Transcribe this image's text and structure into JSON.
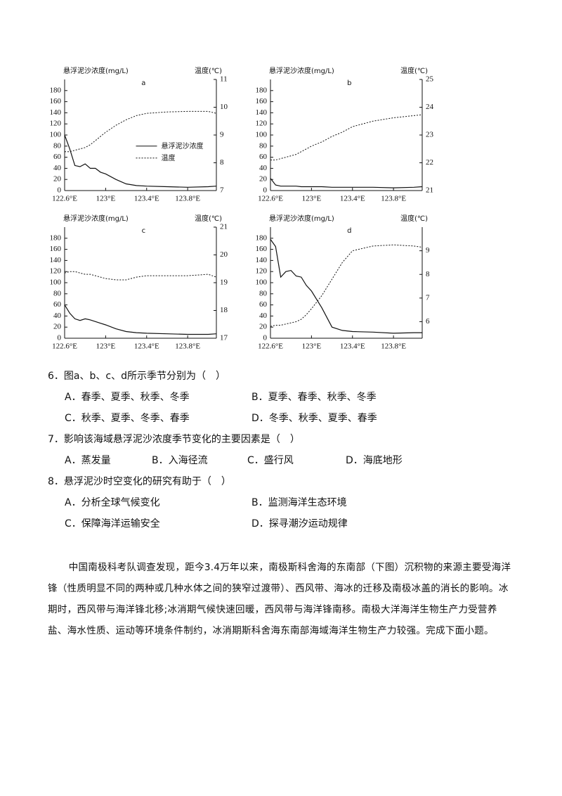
{
  "chart_data": [
    {
      "type": "line",
      "title": "a",
      "y_label": "悬浮泥沙浓度(mg/L)",
      "y2_label": "温度(℃)",
      "x": [
        122.6,
        122.65,
        122.7,
        122.75,
        122.8,
        122.85,
        122.9,
        122.95,
        123.0,
        123.1,
        123.2,
        123.3,
        123.4,
        123.6,
        123.8,
        124.0,
        124.08
      ],
      "xlim": [
        122.6,
        124.08
      ],
      "xticks": [
        {
          "value": 122.6,
          "label": "122.6°E"
        },
        {
          "value": 123.0,
          "label": "123°E"
        },
        {
          "value": 123.4,
          "label": "123.4°E"
        },
        {
          "value": 123.8,
          "label": "123.8°E"
        }
      ],
      "ylim": [
        0,
        200
      ],
      "yticks": [
        0,
        20,
        40,
        60,
        80,
        100,
        120,
        140,
        160,
        180
      ],
      "y2lim": [
        7,
        11
      ],
      "y2ticks": [
        7,
        8,
        9,
        10,
        11
      ],
      "legend": "center",
      "series": [
        {
          "name": "悬浮泥沙浓度",
          "color": "#111111",
          "style": "solid",
          "values": [
            100,
            75,
            45,
            43,
            48,
            40,
            40,
            33,
            30,
            20,
            12,
            9,
            8,
            7,
            6,
            7,
            8
          ]
        },
        {
          "name": "温度",
          "color": "#111111",
          "style": "dashed",
          "axis": "y2",
          "values": [
            8.4,
            8.4,
            8.45,
            8.5,
            8.55,
            8.65,
            8.8,
            8.95,
            9.1,
            9.35,
            9.55,
            9.7,
            9.78,
            9.83,
            9.85,
            9.85,
            9.78
          ]
        }
      ]
    },
    {
      "type": "line",
      "title": "b",
      "y_label": "悬浮泥沙浓度(mg/L)",
      "y2_label": "温度(℃)",
      "x": [
        122.6,
        122.65,
        122.7,
        122.75,
        122.8,
        122.85,
        122.9,
        122.95,
        123.0,
        123.1,
        123.2,
        123.3,
        123.4,
        123.6,
        123.8,
        124.0,
        124.08
      ],
      "xlim": [
        122.6,
        124.08
      ],
      "xticks": [
        {
          "value": 122.6,
          "label": "122.6°E"
        },
        {
          "value": 123.0,
          "label": "123°E"
        },
        {
          "value": 123.4,
          "label": "123.4°E"
        },
        {
          "value": 123.8,
          "label": "123.8°E"
        }
      ],
      "ylim": [
        0,
        200
      ],
      "yticks": [
        0,
        20,
        40,
        60,
        80,
        100,
        120,
        140,
        160,
        180
      ],
      "y2lim": [
        21,
        25
      ],
      "y2ticks": [
        21,
        22,
        23,
        24,
        25
      ],
      "series": [
        {
          "color": "#111111",
          "style": "solid",
          "values": [
            22,
            10,
            8,
            8,
            8,
            8,
            7,
            7,
            7,
            7,
            6,
            6,
            6,
            6,
            5,
            6,
            7
          ]
        },
        {
          "color": "#111111",
          "style": "dashed",
          "axis": "y2",
          "values": [
            22.1,
            22.1,
            22.15,
            22.2,
            22.25,
            22.3,
            22.4,
            22.5,
            22.6,
            22.75,
            22.95,
            23.1,
            23.3,
            23.5,
            23.62,
            23.7,
            23.73
          ]
        }
      ]
    },
    {
      "type": "line",
      "title": "c",
      "y_label": "悬浮泥沙浓度(mg/L)",
      "y2_label": "温度(℃)",
      "x": [
        122.6,
        122.65,
        122.7,
        122.75,
        122.8,
        122.85,
        122.9,
        122.95,
        123.0,
        123.1,
        123.2,
        123.3,
        123.4,
        123.6,
        123.8,
        124.0,
        124.08
      ],
      "xlim": [
        122.6,
        124.08
      ],
      "xticks": [
        {
          "value": 122.6,
          "label": "122.6°E"
        },
        {
          "value": 123.0,
          "label": "123°E"
        },
        {
          "value": 123.4,
          "label": "123.4°E"
        },
        {
          "value": 123.8,
          "label": "123.8°E"
        }
      ],
      "ylim": [
        0,
        200
      ],
      "yticks": [
        0,
        20,
        40,
        60,
        80,
        100,
        120,
        140,
        160,
        180
      ],
      "y2lim": [
        17,
        21
      ],
      "y2ticks": [
        17,
        18,
        19,
        20,
        21
      ],
      "series": [
        {
          "color": "#111111",
          "style": "solid",
          "values": [
            60,
            45,
            35,
            32,
            35,
            33,
            30,
            27,
            24,
            17,
            12,
            10,
            9,
            8,
            7,
            7,
            8
          ]
        },
        {
          "color": "#111111",
          "style": "dashed",
          "axis": "y2",
          "values": [
            19.35,
            19.4,
            19.4,
            19.35,
            19.3,
            19.3,
            19.25,
            19.2,
            19.15,
            19.1,
            19.1,
            19.2,
            19.25,
            19.25,
            19.25,
            19.3,
            19.2
          ]
        }
      ]
    },
    {
      "type": "line",
      "title": "d",
      "y_label": "悬浮泥沙浓度(mg/L)",
      "y2_label": "温度(℃)",
      "x": [
        122.6,
        122.65,
        122.7,
        122.75,
        122.8,
        122.85,
        122.9,
        122.95,
        123.0,
        123.1,
        123.2,
        123.3,
        123.4,
        123.6,
        123.8,
        124.0,
        124.08
      ],
      "xlim": [
        122.6,
        124.08
      ],
      "xticks": [
        {
          "value": 122.6,
          "label": "122.6°E"
        },
        {
          "value": 123.0,
          "label": "123°E"
        },
        {
          "value": 123.4,
          "label": "123.4°E"
        },
        {
          "value": 123.8,
          "label": "123.8°E"
        }
      ],
      "ylim": [
        0,
        200
      ],
      "yticks": [
        0,
        20,
        40,
        60,
        80,
        100,
        120,
        140,
        160,
        180
      ],
      "y2lim": [
        5.3,
        10
      ],
      "y2ticks": [
        6,
        7,
        8,
        9
      ],
      "series": [
        {
          "color": "#111111",
          "style": "solid",
          "values": [
            178,
            165,
            110,
            120,
            122,
            112,
            110,
            95,
            85,
            55,
            20,
            14,
            12,
            11,
            9,
            10,
            10
          ]
        },
        {
          "color": "#111111",
          "style": "dashed",
          "axis": "y2",
          "values": [
            5.8,
            5.85,
            5.85,
            5.9,
            5.95,
            6.0,
            6.1,
            6.3,
            6.55,
            7.1,
            7.8,
            8.5,
            9.0,
            9.2,
            9.25,
            9.2,
            9.15
          ]
        }
      ]
    }
  ],
  "questions": [
    {
      "stem": "6．图a、b、c、d所示季节分别为（　）",
      "options": [
        "A．春季、夏季、秋季、冬季",
        "B．夏季、春季、秋季、冬季",
        "C．秋季、夏季、冬季、春季",
        "D．冬季、秋季、夏季、春季"
      ]
    },
    {
      "stem": "7．影响该海域悬浮泥沙浓度季节变化的主要因素是（　）",
      "options": [
        "A．蒸发量",
        "B．入海径流",
        "C．盛行风",
        "D．海底地形"
      ]
    },
    {
      "stem": "8．悬浮泥沙时空变化的研究有助于（　）",
      "options": [
        "A．分析全球气候变化",
        "B．监测海洋生态环境",
        "C．保障海洋运输安全",
        "D．探寻潮汐运动规律"
      ]
    }
  ],
  "paragraph": "中国南极科考队调查发现，距今3.4万年以来，南极斯科舍海的东南部（下图）沉积物的来源主要受海洋锋（性质明显不同的两种或几种水体之间的狭窄过渡带）、西风带、海冰的迁移及南极冰盖的消长的影响。冰期时，西风带与海洋锋北移;冰消期气候快速回暖，西风带与海洋锋南移。南极大洋海洋生物生产力受营养盐、海水性质、运动等环境条件制约，冰消期斯科舍海东南部海域海洋生物生产力较强。完成下面小题。"
}
